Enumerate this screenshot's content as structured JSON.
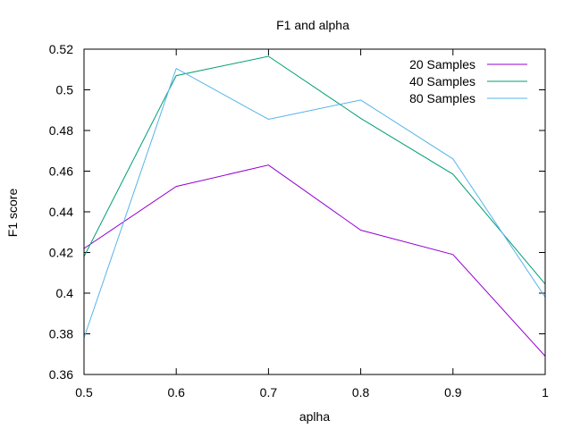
{
  "chart_data": {
    "type": "line",
    "title": "F1 and alpha",
    "xlabel": "aplha",
    "ylabel": "F1 score",
    "xlim": [
      0.5,
      1.0
    ],
    "ylim": [
      0.36,
      0.52
    ],
    "x": [
      0.5,
      0.6,
      0.7,
      0.8,
      0.9,
      1.0
    ],
    "xticks": [
      "0.5",
      "0.6",
      "0.7",
      "0.8",
      "0.9",
      "1"
    ],
    "yticks": [
      "0.36",
      "0.38",
      "0.4",
      "0.42",
      "0.44",
      "0.46",
      "0.48",
      "0.5",
      "0.52"
    ],
    "grid": false,
    "legend_position": "top-right",
    "series": [
      {
        "name": "20 Samples",
        "color": "#9400d3",
        "values": [
          0.422,
          0.4525,
          0.463,
          0.431,
          0.419,
          0.369
        ]
      },
      {
        "name": "40 Samples",
        "color": "#009e73",
        "values": [
          0.418,
          0.507,
          0.5165,
          0.486,
          0.4585,
          0.4045
        ]
      },
      {
        "name": "80 Samples",
        "color": "#56b4e9",
        "values": [
          0.378,
          0.5105,
          0.4855,
          0.495,
          0.466,
          0.398
        ]
      }
    ]
  }
}
